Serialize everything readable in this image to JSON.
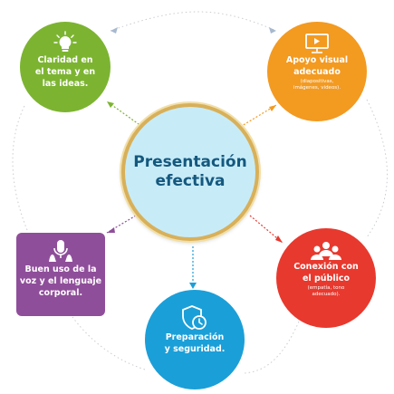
{
  "center": {
    "title": "Presentación\nefectiva"
  },
  "nodes": {
    "claridad": {
      "text": "Claridad en\nel tema y en\nlas ideas.",
      "color": "#7cb431",
      "icon": "lightbulb-icon"
    },
    "apoyo": {
      "text": "Apoyo visual\nadecuado",
      "subtext": "(diapositivas,\nimágenes, videos).",
      "color": "#f39a21",
      "icon": "video-screen-icon"
    },
    "buen_uso": {
      "text": "Buen uso de la\nvoz y el lenguaje\ncorporal.",
      "color": "#8f4e9a",
      "icon": "microphone-hands-icon"
    },
    "conexion": {
      "text": "Conexión con\nel público",
      "subtext": "(empatía, tono\nadecuado).",
      "color": "#e8392e",
      "icon": "audience-icon"
    },
    "preparacion": {
      "text": "Preparación\ny seguridad.",
      "color": "#1b9fd8",
      "icon": "shield-clock-icon"
    }
  },
  "colors": {
    "center_fill": "#c7ecf8",
    "center_border": "#d8b05a",
    "center_text": "#15587e",
    "ring": "#c9ccd0"
  }
}
